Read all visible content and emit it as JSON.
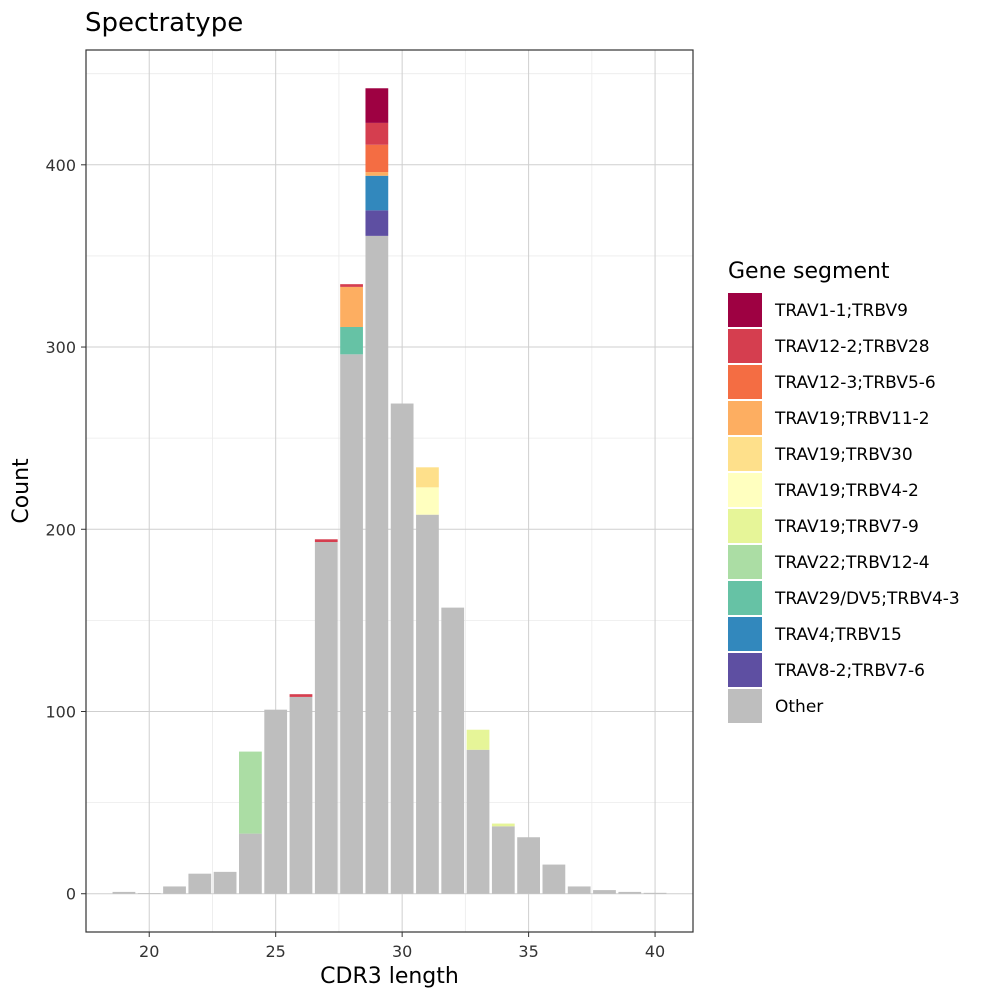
{
  "chart_data": {
    "type": "bar",
    "stacked": true,
    "title": "Spectratype",
    "xlabel": "CDR3 length",
    "ylabel": "Count",
    "xlim": [
      17.5,
      41.5
    ],
    "ylim": [
      -21,
      463
    ],
    "x_ticks": [
      20,
      25,
      30,
      35,
      40
    ],
    "y_ticks": [
      0,
      100,
      200,
      300,
      400
    ],
    "grid": true,
    "legend": {
      "title": "Gene segment",
      "position": "right",
      "entries": [
        {
          "name": "TRAV1-1;TRBV9",
          "color": "#9E0142"
        },
        {
          "name": "TRAV12-2;TRBV28",
          "color": "#D53E4F"
        },
        {
          "name": "TRAV12-3;TRBV5-6",
          "color": "#F46D43"
        },
        {
          "name": "TRAV19;TRBV11-2",
          "color": "#FDAE61"
        },
        {
          "name": "TRAV19;TRBV30",
          "color": "#FEE08B"
        },
        {
          "name": "TRAV19;TRBV4-2",
          "color": "#FFFFBF"
        },
        {
          "name": "TRAV19;TRBV7-9",
          "color": "#E6F598"
        },
        {
          "name": "TRAV22;TRBV12-4",
          "color": "#ABDDA4"
        },
        {
          "name": "TRAV29/DV5;TRBV4-3",
          "color": "#66C2A5"
        },
        {
          "name": "TRAV4;TRBV15",
          "color": "#3288BD"
        },
        {
          "name": "TRAV8-2;TRBV7-6",
          "color": "#5E4FA2"
        },
        {
          "name": "Other",
          "color": "#BEBEBE"
        }
      ]
    },
    "stack_order": [
      "Other",
      "TRAV8-2;TRBV7-6",
      "TRAV4;TRBV15",
      "TRAV29/DV5;TRBV4-3",
      "TRAV22;TRBV12-4",
      "TRAV19;TRBV7-9",
      "TRAV19;TRBV4-2",
      "TRAV19;TRBV30",
      "TRAV19;TRBV11-2",
      "TRAV12-3;TRBV5-6",
      "TRAV12-2;TRBV28",
      "TRAV1-1;TRBV9"
    ],
    "bars": [
      {
        "x": 19,
        "segments": {
          "Other": 1
        }
      },
      {
        "x": 20,
        "segments": {
          "Other": 0.3
        }
      },
      {
        "x": 21,
        "segments": {
          "Other": 4
        }
      },
      {
        "x": 22,
        "segments": {
          "Other": 11
        }
      },
      {
        "x": 23,
        "segments": {
          "Other": 12
        }
      },
      {
        "x": 24,
        "segments": {
          "Other": 33,
          "TRAV22;TRBV12-4": 45
        }
      },
      {
        "x": 25,
        "segments": {
          "Other": 101
        }
      },
      {
        "x": 26,
        "segments": {
          "Other": 108,
          "TRAV12-2;TRBV28": 1.5
        }
      },
      {
        "x": 27,
        "segments": {
          "Other": 193,
          "TRAV12-2;TRBV28": 1.5
        }
      },
      {
        "x": 28,
        "segments": {
          "Other": 296,
          "TRAV29/DV5;TRBV4-3": 15,
          "TRAV19;TRBV11-2": 22,
          "TRAV12-2;TRBV28": 1.5
        }
      },
      {
        "x": 29,
        "segments": {
          "Other": 361,
          "TRAV8-2;TRBV7-6": 14,
          "TRAV4;TRBV15": 19,
          "TRAV19;TRBV11-2": 2,
          "TRAV12-3;TRBV5-6": 15,
          "TRAV12-2;TRBV28": 12,
          "TRAV1-1;TRBV9": 19
        }
      },
      {
        "x": 30,
        "segments": {
          "Other": 269
        }
      },
      {
        "x": 31,
        "segments": {
          "Other": 208,
          "TRAV19;TRBV4-2": 15,
          "TRAV19;TRBV30": 11
        }
      },
      {
        "x": 32,
        "segments": {
          "Other": 157
        }
      },
      {
        "x": 33,
        "segments": {
          "Other": 79,
          "TRAV19;TRBV7-9": 11
        }
      },
      {
        "x": 34,
        "segments": {
          "Other": 37,
          "TRAV19;TRBV7-9": 1.5
        }
      },
      {
        "x": 35,
        "segments": {
          "Other": 31
        }
      },
      {
        "x": 36,
        "segments": {
          "Other": 16
        }
      },
      {
        "x": 37,
        "segments": {
          "Other": 4
        }
      },
      {
        "x": 38,
        "segments": {
          "Other": 2
        }
      },
      {
        "x": 39,
        "segments": {
          "Other": 1
        }
      },
      {
        "x": 40,
        "segments": {
          "Other": 0.5
        }
      }
    ]
  }
}
